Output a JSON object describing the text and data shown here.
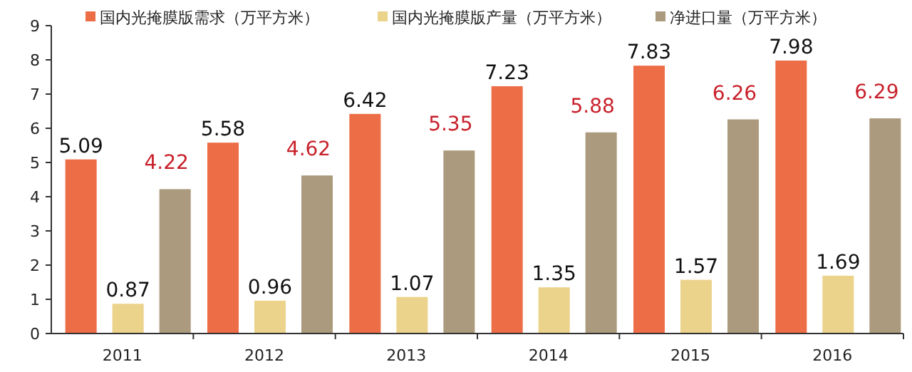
{
  "chart_data": {
    "type": "bar",
    "categories": [
      "2011",
      "2012",
      "2013",
      "2014",
      "2015",
      "2016"
    ],
    "series": [
      {
        "name": "国内光掩膜版需求（万平方米）",
        "color": "#ed6d46",
        "values": [
          5.09,
          5.58,
          6.42,
          7.23,
          7.83,
          7.98
        ]
      },
      {
        "name": "国内光掩膜版产量（万平方米）",
        "color": "#ebd38c",
        "values": [
          0.87,
          0.96,
          1.07,
          1.35,
          1.57,
          1.69
        ]
      },
      {
        "name": "净进口量（万平方米）",
        "color": "#ab9a7d",
        "values": [
          4.22,
          4.62,
          5.35,
          5.88,
          6.26,
          6.29
        ]
      }
    ],
    "ylim": [
      0,
      9
    ],
    "yticks": [
      0,
      1,
      2,
      3,
      4,
      5,
      6,
      7,
      8,
      9
    ],
    "grid": false,
    "legend": "top",
    "data_labels": true
  }
}
